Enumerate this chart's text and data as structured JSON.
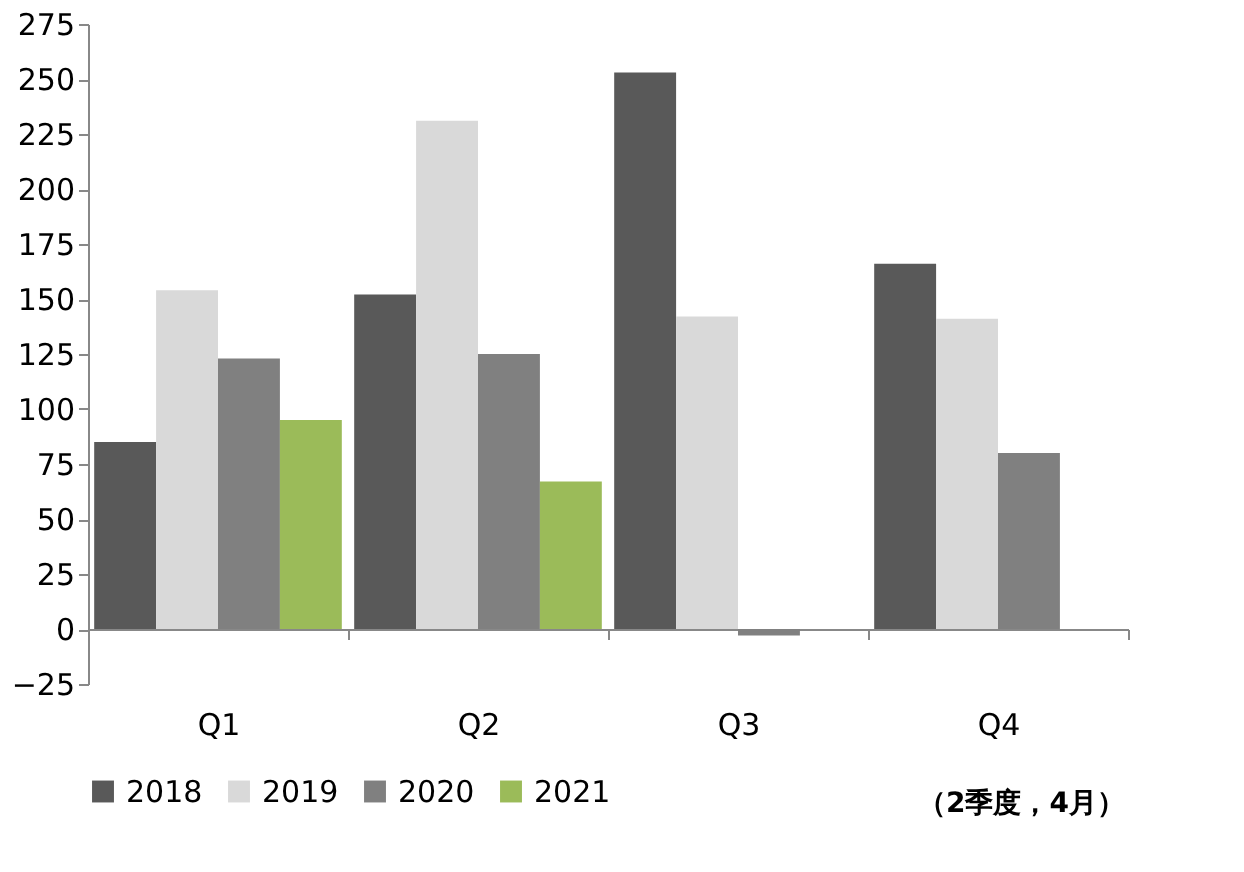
{
  "chart_data": {
    "type": "bar",
    "categories": [
      "Q1",
      "Q2",
      "Q3",
      "Q4"
    ],
    "series": [
      {
        "name": "2018",
        "color": "#595959",
        "values": [
          85,
          152,
          253,
          166
        ]
      },
      {
        "name": "2019",
        "color": "#d9d9d9",
        "values": [
          154,
          231,
          142,
          141
        ]
      },
      {
        "name": "2020",
        "color": "#808080",
        "values": [
          123,
          125,
          -3,
          80
        ]
      },
      {
        "name": "2021",
        "color": "#9bbb59",
        "values": [
          95,
          67,
          null,
          null
        ]
      }
    ],
    "ylim": [
      -25,
      275
    ],
    "yticks": [
      -25,
      0,
      25,
      50,
      75,
      100,
      125,
      150,
      175,
      200,
      225,
      250,
      275
    ],
    "grid": false,
    "legend": "bottom",
    "annotations": [
      "（2季度，4月）"
    ]
  }
}
